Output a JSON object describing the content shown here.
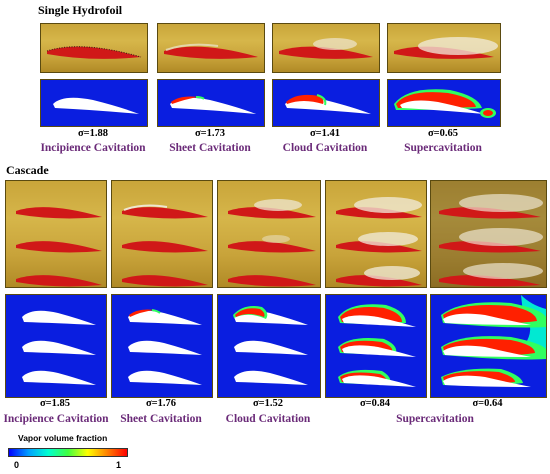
{
  "single": {
    "title": "Single Hydrofoil",
    "cases": [
      {
        "sigma": "σ=1.88",
        "regime": "Incipience Cavitation"
      },
      {
        "sigma": "σ=1.73",
        "regime": "Sheet Cavitation"
      },
      {
        "sigma": "σ=1.41",
        "regime": "Cloud Cavitation"
      },
      {
        "sigma": "σ=0.65",
        "regime": "Supercavitation"
      }
    ]
  },
  "cascade": {
    "title": "Cascade",
    "sigmas": [
      "σ=1.85",
      "σ=1.76",
      "σ=1.52",
      "σ=0.84",
      "σ=0.64"
    ],
    "regimes": [
      "Incipience Cavitation",
      "Sheet Cavitation",
      "Cloud Cavitation",
      "Supercavitation"
    ]
  },
  "colorbar": {
    "title": "Vapor volume fraction",
    "min": "0",
    "max": "1",
    "colors": [
      "#0000ff",
      "#00a0ff",
      "#00ffd0",
      "#40ff40",
      "#ffff00",
      "#ff8000",
      "#ff0000"
    ]
  }
}
